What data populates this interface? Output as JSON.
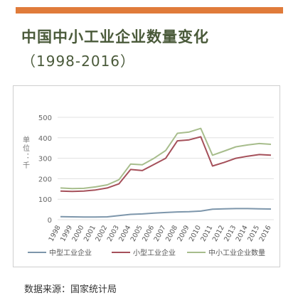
{
  "page": {
    "title": "中国中小工业企业数量变化",
    "subtitle": "（1998-2016）",
    "source": "数据来源：国家统计局"
  },
  "colors": {
    "accent_bar": "#e07b3a",
    "series_medium": "#7d96ab",
    "series_small": "#a5505a",
    "series_total": "#a7bd8c",
    "grid": "#e0e0e0"
  },
  "chart_data": {
    "type": "line",
    "title": "",
    "xlabel": "",
    "ylabel": "单位：千",
    "ylim": [
      0,
      500
    ],
    "yticks": [
      0,
      100,
      200,
      300,
      400,
      500
    ],
    "grid": true,
    "legend": "bottom",
    "categories": [
      "1998",
      "1999",
      "2000",
      "2001",
      "2002",
      "2003",
      "2004",
      "2005",
      "2006",
      "2007",
      "2008",
      "2009",
      "2010",
      "2011",
      "2012",
      "2013",
      "2014",
      "2015",
      "2016"
    ],
    "series": [
      {
        "name": "中型工业企业",
        "color_key": "series_medium",
        "values": [
          15,
          14,
          13,
          13,
          14,
          20,
          26,
          28,
          32,
          35,
          38,
          39,
          42,
          51,
          53,
          54,
          54,
          53,
          52
        ]
      },
      {
        "name": "小型工业企业",
        "color_key": "series_small",
        "values": [
          140,
          138,
          140,
          145,
          155,
          175,
          245,
          240,
          270,
          300,
          385,
          390,
          405,
          262,
          280,
          300,
          310,
          318,
          315
        ]
      },
      {
        "name": "中小工业企业数量",
        "color_key": "series_total",
        "values": [
          155,
          152,
          153,
          160,
          170,
          195,
          272,
          268,
          300,
          338,
          422,
          428,
          446,
          315,
          335,
          356,
          365,
          372,
          368
        ]
      }
    ]
  }
}
